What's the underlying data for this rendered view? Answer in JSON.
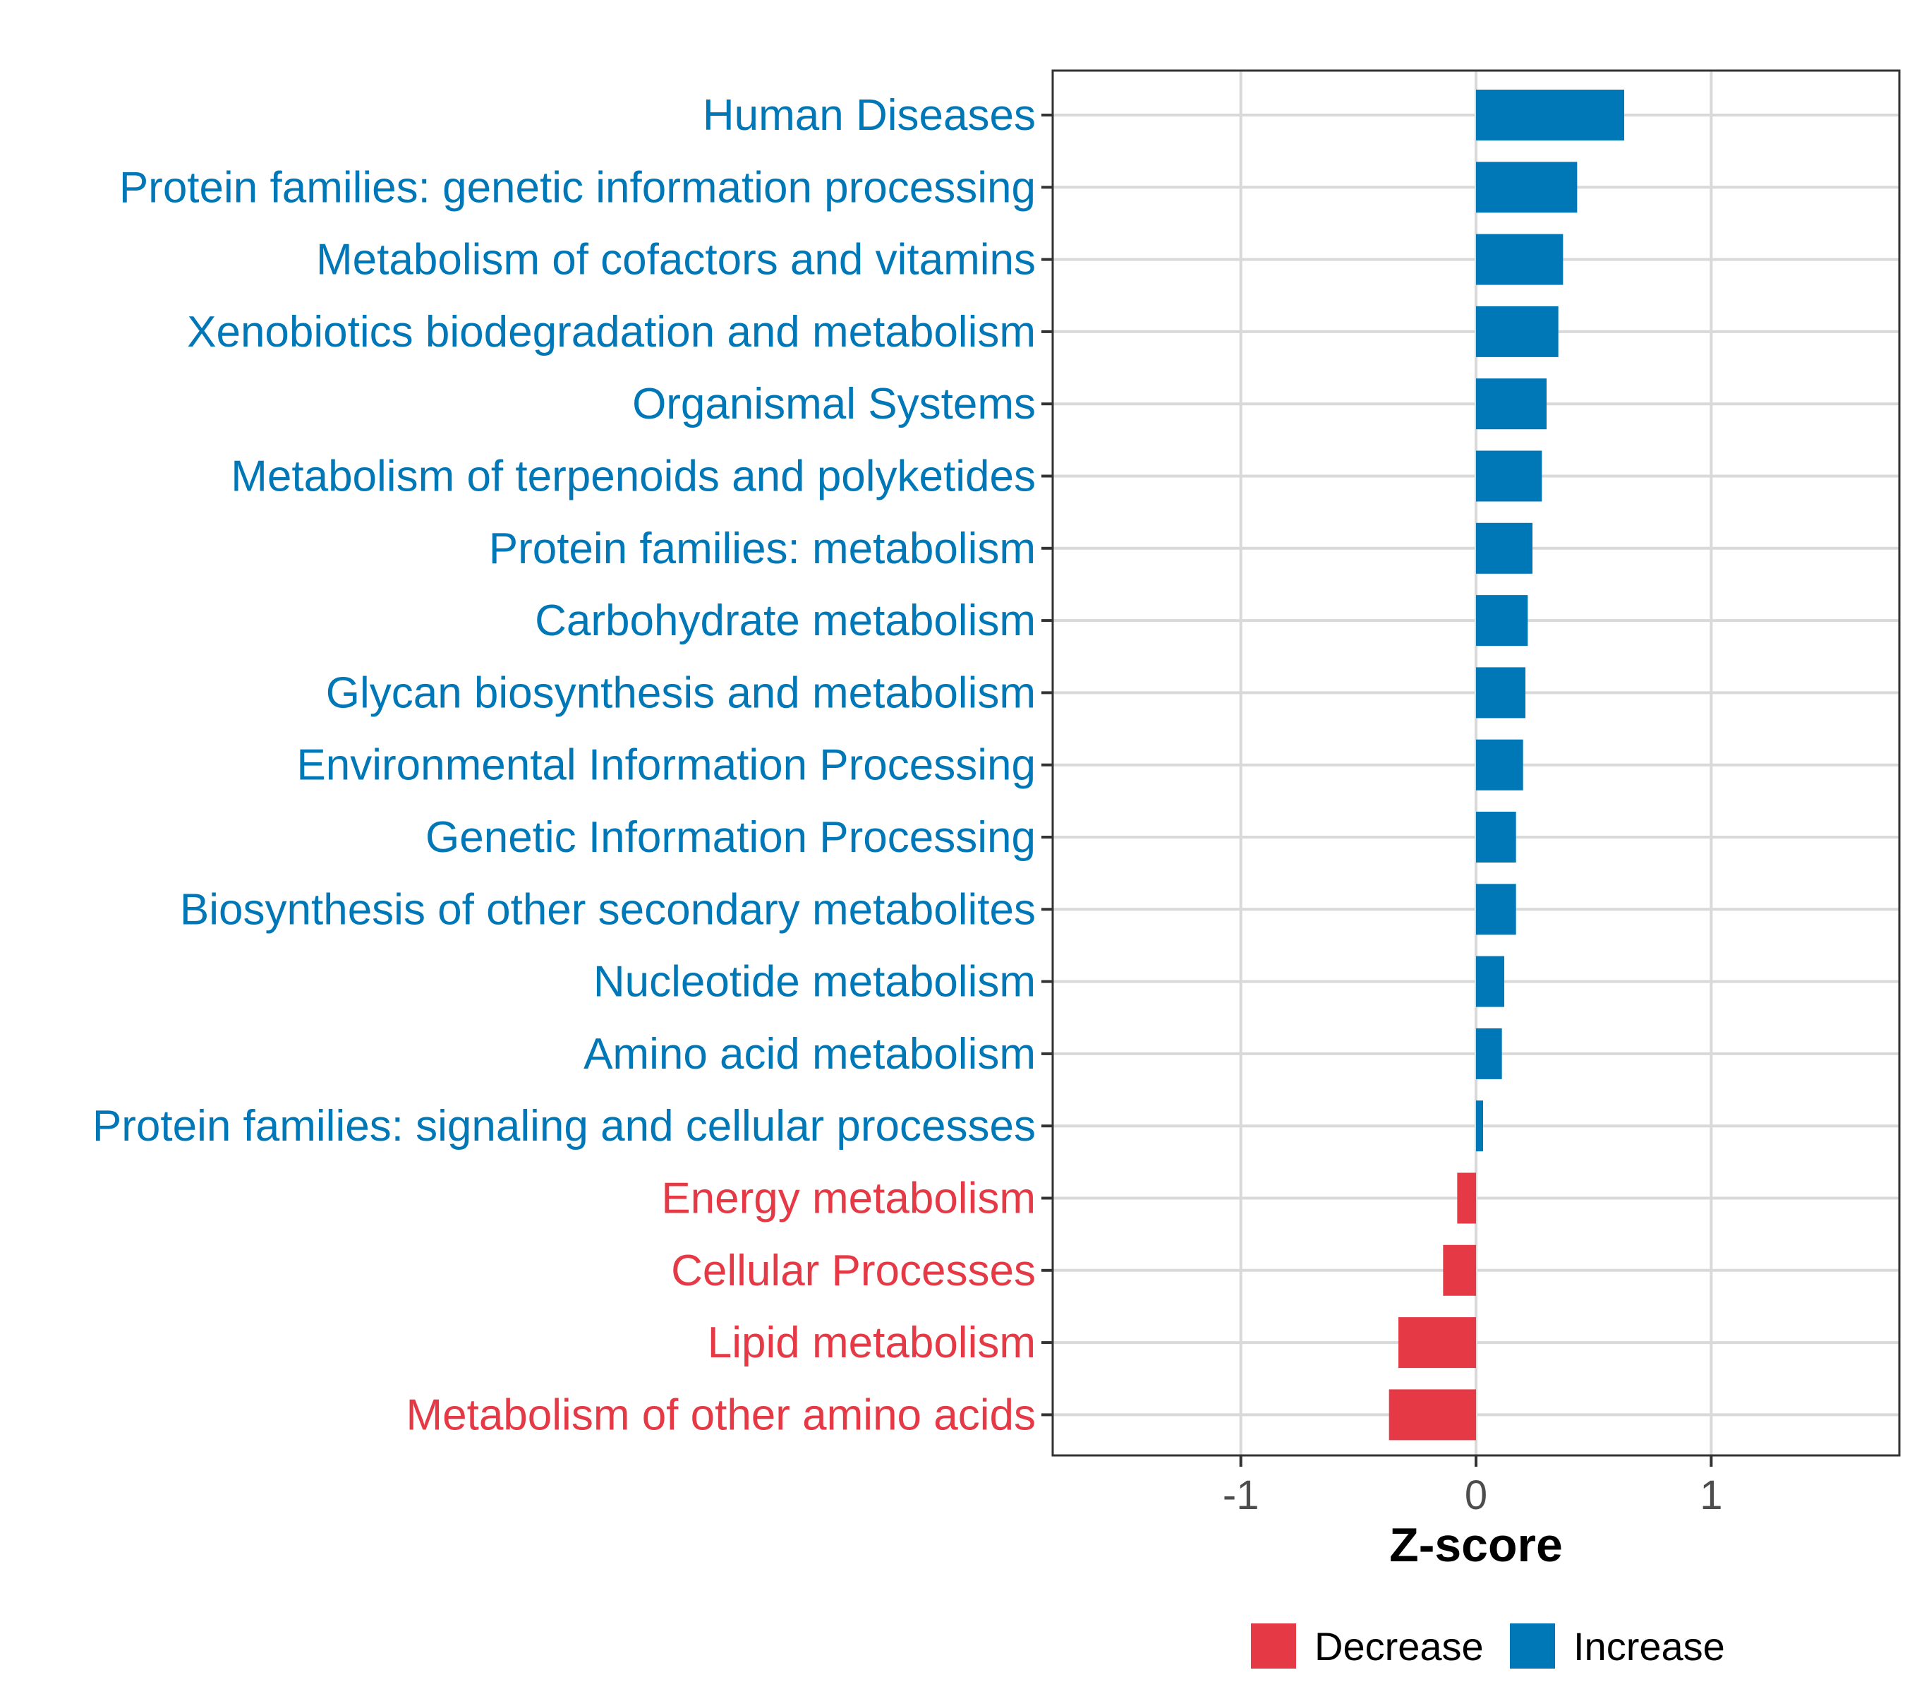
{
  "chart_data": {
    "type": "bar",
    "orientation": "horizontal",
    "xlabel": "Z-score",
    "xlim": [
      -1.8,
      1.8
    ],
    "xticks": [
      -1,
      0,
      1
    ],
    "xtick_labels": [
      "-1",
      "0",
      "1"
    ],
    "grid": true,
    "legend_position": "bottom",
    "colors": {
      "Decrease": "#E63946",
      "Increase": "#0077B6"
    },
    "legend": [
      {
        "name": "Decrease",
        "label": "Decrease"
      },
      {
        "name": "Increase",
        "label": "Increase"
      }
    ],
    "bars": [
      {
        "category": "Human Diseases",
        "value": 0.63,
        "direction": "Increase"
      },
      {
        "category": "Protein families: genetic information processing",
        "value": 0.43,
        "direction": "Increase"
      },
      {
        "category": "Metabolism of cofactors and vitamins",
        "value": 0.37,
        "direction": "Increase"
      },
      {
        "category": "Xenobiotics biodegradation and metabolism",
        "value": 0.35,
        "direction": "Increase"
      },
      {
        "category": "Organismal Systems",
        "value": 0.3,
        "direction": "Increase"
      },
      {
        "category": "Metabolism of terpenoids and polyketides",
        "value": 0.28,
        "direction": "Increase"
      },
      {
        "category": "Protein families: metabolism",
        "value": 0.24,
        "direction": "Increase"
      },
      {
        "category": "Carbohydrate metabolism",
        "value": 0.22,
        "direction": "Increase"
      },
      {
        "category": "Glycan biosynthesis and metabolism",
        "value": 0.21,
        "direction": "Increase"
      },
      {
        "category": "Environmental Information Processing",
        "value": 0.2,
        "direction": "Increase"
      },
      {
        "category": "Genetic Information Processing",
        "value": 0.17,
        "direction": "Increase"
      },
      {
        "category": "Biosynthesis of other secondary metabolites",
        "value": 0.17,
        "direction": "Increase"
      },
      {
        "category": "Nucleotide metabolism",
        "value": 0.12,
        "direction": "Increase"
      },
      {
        "category": "Amino acid metabolism",
        "value": 0.11,
        "direction": "Increase"
      },
      {
        "category": "Protein families: signaling and cellular processes",
        "value": 0.03,
        "direction": "Increase"
      },
      {
        "category": "Energy metabolism",
        "value": -0.08,
        "direction": "Decrease"
      },
      {
        "category": "Cellular Processes",
        "value": -0.14,
        "direction": "Decrease"
      },
      {
        "category": "Lipid metabolism",
        "value": -0.33,
        "direction": "Decrease"
      },
      {
        "category": "Metabolism of other amino acids",
        "value": -0.37,
        "direction": "Decrease"
      }
    ]
  }
}
